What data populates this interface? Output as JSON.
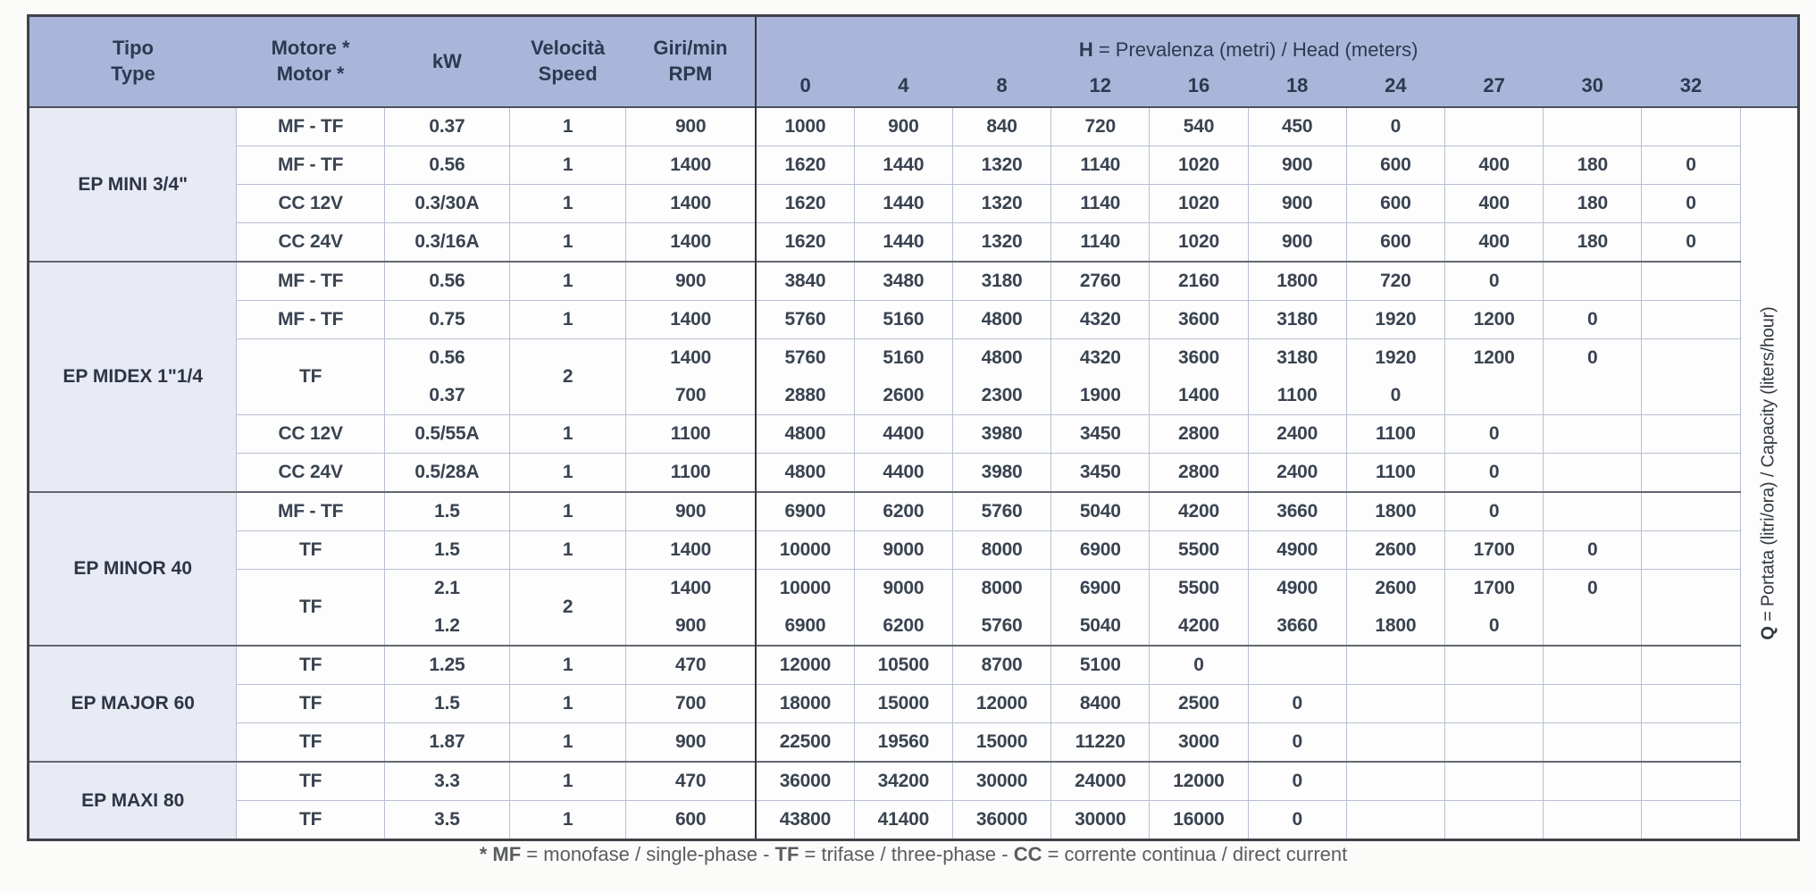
{
  "header": {
    "tipo": "Tipo\nType",
    "motore": "Motore *\nMotor *",
    "kw": "kW",
    "velocita": "Velocità\nSpeed",
    "rpm": "Giri/min\nRPM",
    "head_title_segments": [
      {
        "t": "H",
        "b": true
      },
      {
        "t": " = Prevalenza (metri) / Head (meters)",
        "b": false
      }
    ],
    "head_cols": [
      "0",
      "4",
      "8",
      "12",
      "16",
      "18",
      "24",
      "27",
      "30",
      "32"
    ]
  },
  "q_label_segments": [
    {
      "t": "Q",
      "b": true
    },
    {
      "t": " = Portata (litri/ora) / Capacity (liters/hour)",
      "b": false
    }
  ],
  "footnote_segments": [
    {
      "t": "* MF",
      "b": true
    },
    {
      "t": " = monofase / single-phase - ",
      "b": false
    },
    {
      "t": "TF",
      "b": true
    },
    {
      "t": " = trifase / three-phase - ",
      "b": false
    },
    {
      "t": "CC",
      "b": true
    },
    {
      "t": " = corrente continua / direct current",
      "b": false
    }
  ],
  "groups": [
    {
      "type": "EP MINI 3/4\"",
      "rows": [
        {
          "motor": "MF - TF",
          "kw": "0.37",
          "speed": "1",
          "rpm": "900",
          "values": [
            "1000",
            "900",
            "840",
            "720",
            "540",
            "450",
            "0",
            "",
            "",
            ""
          ]
        },
        {
          "motor": "MF - TF",
          "kw": "0.56",
          "speed": "1",
          "rpm": "1400",
          "values": [
            "1620",
            "1440",
            "1320",
            "1140",
            "1020",
            "900",
            "600",
            "400",
            "180",
            "0"
          ]
        },
        {
          "motor": "CC 12V",
          "kw": "0.3/30A",
          "speed": "1",
          "rpm": "1400",
          "values": [
            "1620",
            "1440",
            "1320",
            "1140",
            "1020",
            "900",
            "600",
            "400",
            "180",
            "0"
          ]
        },
        {
          "motor": "CC 24V",
          "kw": "0.3/16A",
          "speed": "1",
          "rpm": "1400",
          "values": [
            "1620",
            "1440",
            "1320",
            "1140",
            "1020",
            "900",
            "600",
            "400",
            "180",
            "0"
          ]
        }
      ]
    },
    {
      "type": "EP MIDEX 1\"1/4",
      "rows": [
        {
          "motor": "MF - TF",
          "kw": "0.56",
          "speed": "1",
          "rpm": "900",
          "values": [
            "3840",
            "3480",
            "3180",
            "2760",
            "2160",
            "1800",
            "720",
            "0",
            "",
            ""
          ]
        },
        {
          "motor": "MF - TF",
          "kw": "0.75",
          "speed": "1",
          "rpm": "1400",
          "values": [
            "5760",
            "5160",
            "4800",
            "4320",
            "3600",
            "3180",
            "1920",
            "1200",
            "0",
            ""
          ]
        },
        {
          "motor": "TF",
          "kw": "0.56",
          "speed": "2",
          "rpm": "1400",
          "merge_next": true,
          "values": [
            "5760",
            "5160",
            "4800",
            "4320",
            "3600",
            "3180",
            "1920",
            "1200",
            "0",
            ""
          ]
        },
        {
          "kw": "0.37",
          "rpm": "700",
          "values": [
            "2880",
            "2600",
            "2300",
            "1900",
            "1400",
            "1100",
            "0",
            "",
            "",
            ""
          ]
        },
        {
          "motor": "CC 12V",
          "kw": "0.5/55A",
          "speed": "1",
          "rpm": "1100",
          "values": [
            "4800",
            "4400",
            "3980",
            "3450",
            "2800",
            "2400",
            "1100",
            "0",
            "",
            ""
          ]
        },
        {
          "motor": "CC 24V",
          "kw": "0.5/28A",
          "speed": "1",
          "rpm": "1100",
          "values": [
            "4800",
            "4400",
            "3980",
            "3450",
            "2800",
            "2400",
            "1100",
            "0",
            "",
            ""
          ]
        }
      ]
    },
    {
      "type": "EP MINOR 40",
      "rows": [
        {
          "motor": "MF - TF",
          "kw": "1.5",
          "speed": "1",
          "rpm": "900",
          "values": [
            "6900",
            "6200",
            "5760",
            "5040",
            "4200",
            "3660",
            "1800",
            "0",
            "",
            ""
          ]
        },
        {
          "motor": "TF",
          "kw": "1.5",
          "speed": "1",
          "rpm": "1400",
          "values": [
            "10000",
            "9000",
            "8000",
            "6900",
            "5500",
            "4900",
            "2600",
            "1700",
            "0",
            ""
          ]
        },
        {
          "motor": "TF",
          "kw": "2.1",
          "speed": "2",
          "rpm": "1400",
          "merge_next": true,
          "values": [
            "10000",
            "9000",
            "8000",
            "6900",
            "5500",
            "4900",
            "2600",
            "1700",
            "0",
            ""
          ]
        },
        {
          "kw": "1.2",
          "rpm": "900",
          "values": [
            "6900",
            "6200",
            "5760",
            "5040",
            "4200",
            "3660",
            "1800",
            "0",
            "",
            ""
          ]
        }
      ]
    },
    {
      "type": "EP MAJOR 60",
      "rows": [
        {
          "motor": "TF",
          "kw": "1.25",
          "speed": "1",
          "rpm": "470",
          "values": [
            "12000",
            "10500",
            "8700",
            "5100",
            "0",
            "",
            "",
            "",
            "",
            ""
          ]
        },
        {
          "motor": "TF",
          "kw": "1.5",
          "speed": "1",
          "rpm": "700",
          "values": [
            "18000",
            "15000",
            "12000",
            "8400",
            "2500",
            "0",
            "",
            "",
            "",
            ""
          ]
        },
        {
          "motor": "TF",
          "kw": "1.87",
          "speed": "1",
          "rpm": "900",
          "values": [
            "22500",
            "19560",
            "15000",
            "11220",
            "3000",
            "0",
            "",
            "",
            "",
            ""
          ]
        }
      ]
    },
    {
      "type": "EP MAXI 80",
      "rows": [
        {
          "motor": "TF",
          "kw": "3.3",
          "speed": "1",
          "rpm": "470",
          "values": [
            "36000",
            "34200",
            "30000",
            "24000",
            "12000",
            "0",
            "",
            "",
            "",
            ""
          ]
        },
        {
          "motor": "TF",
          "kw": "3.5",
          "speed": "1",
          "rpm": "600",
          "values": [
            "43800",
            "41400",
            "36000",
            "30000",
            "16000",
            "0",
            "",
            "",
            "",
            ""
          ]
        }
      ]
    }
  ]
}
